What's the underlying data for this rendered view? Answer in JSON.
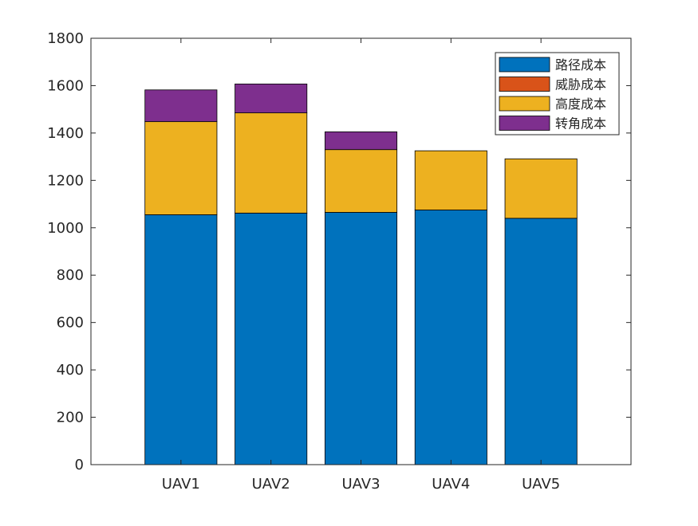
{
  "chart_data": {
    "type": "bar",
    "stacked": true,
    "categories": [
      "UAV1",
      "UAV2",
      "UAV3",
      "UAV4",
      "UAV5"
    ],
    "series": [
      {
        "name": "路径成本",
        "color": "#0072BD",
        "values": [
          1055,
          1062,
          1065,
          1075,
          1040
        ]
      },
      {
        "name": "威胁成本",
        "color": "#D95319",
        "values": [
          0,
          0,
          0,
          0,
          0
        ]
      },
      {
        "name": "高度成本",
        "color": "#EDB120",
        "values": [
          393,
          423,
          265,
          250,
          251
        ]
      },
      {
        "name": "转角成本",
        "color": "#7E2F8E",
        "values": [
          134,
          122,
          75,
          0,
          0
        ]
      }
    ],
    "ylim": [
      0,
      1800
    ],
    "yticks": [
      0,
      200,
      400,
      600,
      800,
      1000,
      1200,
      1400,
      1600,
      1800
    ],
    "ytick_labels": [
      "0",
      "200",
      "400",
      "600",
      "800",
      "1000",
      "1200",
      "1400",
      "1600",
      "1800"
    ],
    "grid": false,
    "legend_position": "top-right",
    "title": "",
    "xlabel": "",
    "ylabel": ""
  }
}
